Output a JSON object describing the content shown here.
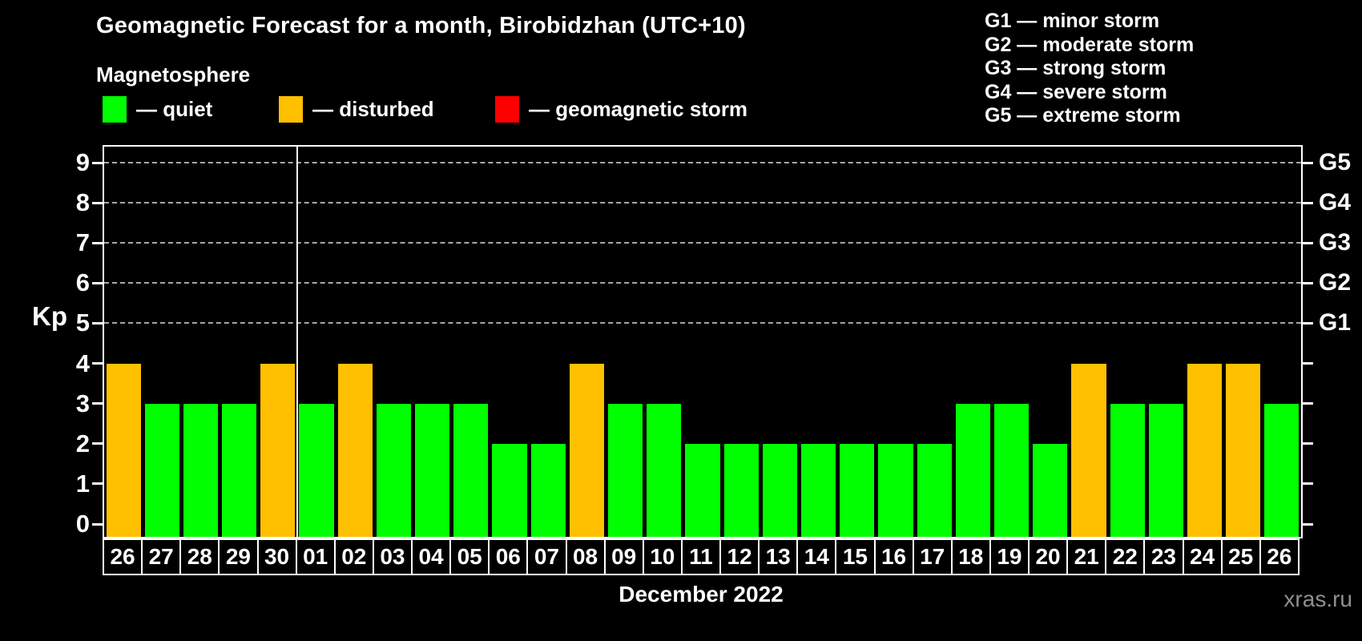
{
  "header": {
    "title": "Geomagnetic Forecast for a month, Birobidzhan (UTC+10)",
    "subtitle": "Magnetosphere",
    "legend": [
      {
        "name": "quiet",
        "label": "— quiet",
        "color": "#00ff00"
      },
      {
        "name": "disturbed",
        "label": "— disturbed",
        "color": "#ffc000"
      },
      {
        "name": "storm",
        "label": "— geomagnetic storm",
        "color": "#ff0000"
      }
    ],
    "g_scale_legend": [
      "G1 — minor storm",
      "G2 — moderate storm",
      "G3 — strong storm",
      "G4 — severe storm",
      "G5 — extreme storm"
    ]
  },
  "chart_data": {
    "type": "bar",
    "title": "Geomagnetic Forecast for a month, Birobidzhan (UTC+10)",
    "ylabel": "Kp",
    "xlabel": "December 2022",
    "ylim": [
      0,
      9
    ],
    "y_ticks": [
      0,
      1,
      2,
      3,
      4,
      5,
      6,
      7,
      8,
      9
    ],
    "gridlines": [
      5,
      6,
      7,
      8,
      9
    ],
    "grid_style": "dashed",
    "legend_position": "top",
    "right_axis": [
      {
        "value": 5,
        "label": "G1"
      },
      {
        "value": 6,
        "label": "G2"
      },
      {
        "value": 7,
        "label": "G3"
      },
      {
        "value": 8,
        "label": "G4"
      },
      {
        "value": 9,
        "label": "G5"
      }
    ],
    "month_divider_after_index": 4,
    "categories": [
      "26",
      "27",
      "28",
      "29",
      "30",
      "01",
      "02",
      "03",
      "04",
      "05",
      "06",
      "07",
      "08",
      "09",
      "10",
      "11",
      "12",
      "13",
      "14",
      "15",
      "16",
      "17",
      "18",
      "19",
      "20",
      "21",
      "22",
      "23",
      "24",
      "25",
      "26"
    ],
    "series": [
      {
        "name": "Kp forecast",
        "values": [
          4,
          3,
          3,
          3,
          4,
          3,
          4,
          3,
          3,
          3,
          2,
          2,
          4,
          3,
          3,
          2,
          2,
          2,
          2,
          2,
          2,
          2,
          3,
          3,
          2,
          4,
          3,
          3,
          4,
          4,
          3
        ]
      }
    ],
    "statuses": [
      "disturbed",
      "quiet",
      "quiet",
      "quiet",
      "disturbed",
      "quiet",
      "disturbed",
      "quiet",
      "quiet",
      "quiet",
      "quiet",
      "quiet",
      "disturbed",
      "quiet",
      "quiet",
      "quiet",
      "quiet",
      "quiet",
      "quiet",
      "quiet",
      "quiet",
      "quiet",
      "quiet",
      "quiet",
      "quiet",
      "disturbed",
      "quiet",
      "quiet",
      "disturbed",
      "disturbed",
      "quiet"
    ],
    "status_colors": {
      "quiet": "#00ff00",
      "disturbed": "#ffc000",
      "storm": "#ff0000"
    }
  },
  "footer": {
    "watermark": "xras.ru"
  }
}
